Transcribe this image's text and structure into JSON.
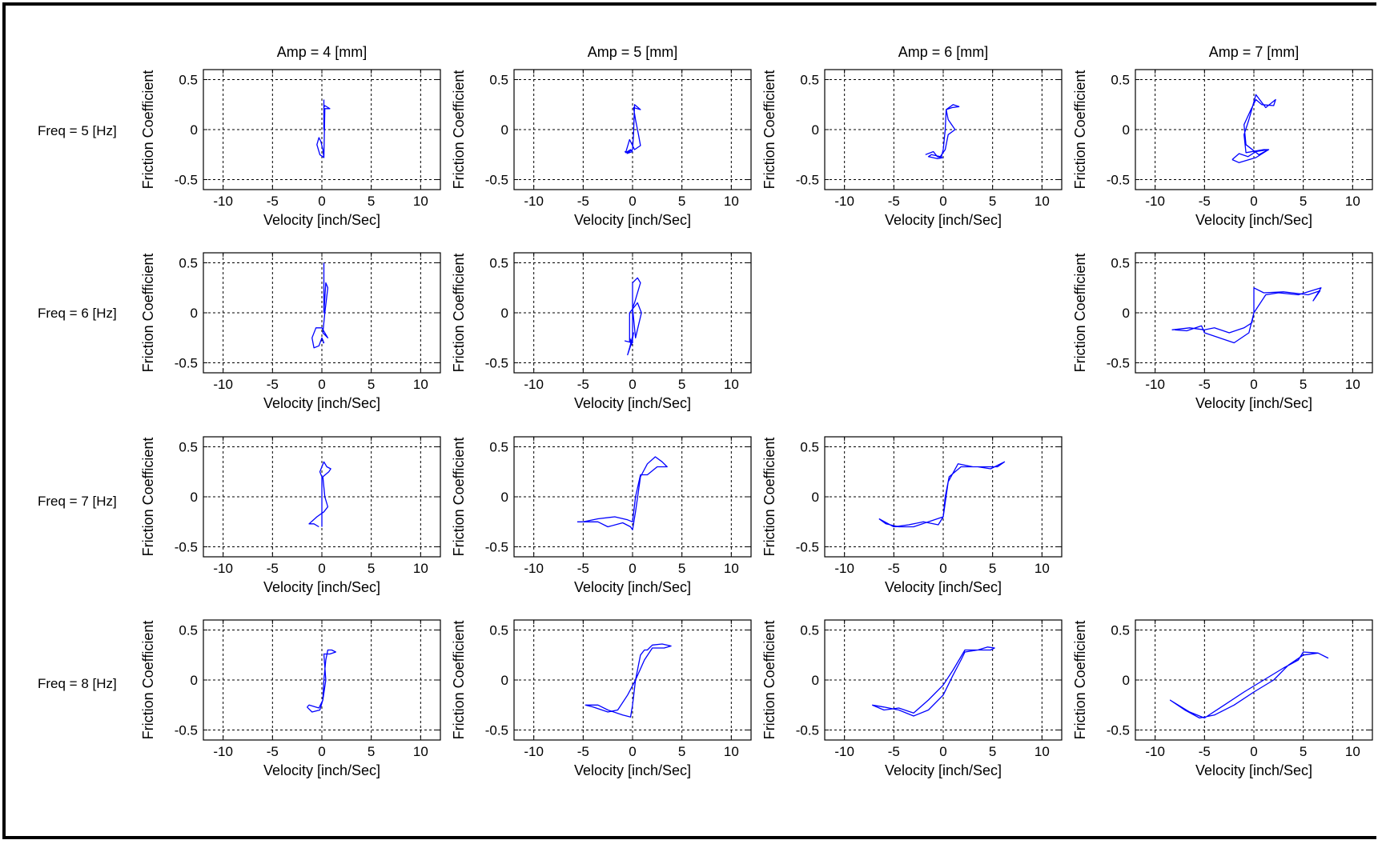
{
  "figure": {
    "column_titles": [
      "Amp = 4 [mm]",
      "Amp = 5 [mm]",
      "Amp = 6 [mm]",
      "Amp = 7 [mm]"
    ],
    "row_labels": [
      "Freq = 5 [Hz]",
      "Freq = 6 [Hz]",
      "Freq = 7 [Hz]",
      "Freq = 8 [Hz]"
    ]
  },
  "colors": {
    "trace": "#0000ff",
    "axes": "#000000",
    "background": "#ffffff"
  },
  "chart_data": [
    {
      "type": "line",
      "row": 0,
      "col": 0,
      "title": "Amp = 4 [mm]",
      "xlabel": "Velocity [inch/Sec]",
      "ylabel": "Friction Coefficient",
      "xlim": [
        -12,
        12
      ],
      "ylim": [
        -0.6,
        0.6
      ],
      "xticks": [
        -10,
        -5,
        0,
        5,
        10
      ],
      "xticklabels": [
        "-10",
        "-5",
        "0",
        "5",
        "10"
      ],
      "yticks": [
        -0.5,
        0,
        0.5
      ],
      "yticklabels": [
        "-0.5",
        "0",
        "0.5"
      ],
      "grid": true,
      "x": [
        0.2,
        0.2,
        0.2,
        0.3,
        0.8,
        0.3,
        0.2,
        -0.2,
        -0.5,
        -0.3,
        -0.1,
        0.1,
        0.2
      ],
      "y": [
        0.3,
        0.0,
        0.22,
        0.24,
        0.21,
        0.21,
        -0.28,
        -0.25,
        -0.15,
        -0.08,
        -0.12,
        -0.2,
        -0.28
      ]
    },
    {
      "type": "line",
      "row": 0,
      "col": 1,
      "title": "Amp = 5 [mm]",
      "xlabel": "Velocity [inch/Sec]",
      "ylabel": "Friction Coefficient",
      "xlim": [
        -12,
        12
      ],
      "ylim": [
        -0.6,
        0.6
      ],
      "xticks": [
        -10,
        -5,
        0,
        5,
        10
      ],
      "xticklabels": [
        "-10",
        "-5",
        "0",
        "5",
        "10"
      ],
      "yticks": [
        -0.5,
        0,
        0.5
      ],
      "yticklabels": [
        "-0.5",
        "0",
        "0.5"
      ],
      "grid": true,
      "x": [
        -0.8,
        -0.5,
        0.0,
        0.1,
        0.2,
        0.8,
        0.1,
        0.3,
        0.6,
        0.8,
        0.2,
        -0.3,
        -0.7,
        -0.2,
        0.0,
        -0.6
      ],
      "y": [
        -0.22,
        -0.23,
        -0.2,
        -0.05,
        0.25,
        0.2,
        0.22,
        0.1,
        -0.05,
        -0.16,
        -0.2,
        -0.1,
        -0.23,
        -0.2,
        -0.22,
        -0.24
      ]
    },
    {
      "type": "line",
      "row": 0,
      "col": 2,
      "title": "Amp = 6 [mm]",
      "xlabel": "Velocity [inch/Sec]",
      "ylabel": "Friction Coefficient",
      "xlim": [
        -12,
        12
      ],
      "ylim": [
        -0.6,
        0.6
      ],
      "xticks": [
        -10,
        -5,
        0,
        5,
        10
      ],
      "xticklabels": [
        "-10",
        "-5",
        "0",
        "5",
        "10"
      ],
      "yticks": [
        -0.5,
        0,
        0.5
      ],
      "yticklabels": [
        "-0.5",
        "0",
        "0.5"
      ],
      "grid": true,
      "x": [
        -1.8,
        -1.0,
        -0.6,
        -0.2,
        0.0,
        0.2,
        0.3,
        1.0,
        1.6,
        0.9,
        0.3,
        0.5,
        1.2,
        0.5,
        0.2,
        -0.3,
        -1.2,
        -1.5,
        -0.6,
        0.0
      ],
      "y": [
        -0.25,
        -0.22,
        -0.27,
        -0.28,
        -0.2,
        0.0,
        0.2,
        0.25,
        0.23,
        0.22,
        0.2,
        0.1,
        0.0,
        -0.05,
        -0.2,
        -0.27,
        -0.25,
        -0.27,
        -0.29,
        -0.28
      ]
    },
    {
      "type": "line",
      "row": 0,
      "col": 3,
      "title": "Amp = 7 [mm]",
      "xlabel": "Velocity [inch/Sec]",
      "ylabel": "Friction Coefficient",
      "xlim": [
        -12,
        12
      ],
      "ylim": [
        -0.6,
        0.6
      ],
      "xticks": [
        -10,
        -5,
        0,
        5,
        10
      ],
      "xticklabels": [
        "-10",
        "-5",
        "0",
        "5",
        "10"
      ],
      "yticks": [
        -0.5,
        0,
        0.5
      ],
      "yticklabels": [
        "-0.5",
        "0",
        "0.5"
      ],
      "grid": true,
      "x": [
        -2.2,
        -1.5,
        -0.6,
        0.2,
        1.5,
        1.0,
        -0.8,
        -1.0,
        -0.5,
        0.2,
        1.2,
        2.2,
        2.0,
        0.8,
        0.2,
        -0.3,
        -1.0,
        -0.8,
        0.5,
        1.5,
        0.2,
        -1.5,
        -2.2
      ],
      "y": [
        -0.3,
        -0.24,
        -0.27,
        -0.22,
        -0.2,
        -0.2,
        -0.23,
        -0.05,
        0.1,
        0.35,
        0.22,
        0.3,
        0.24,
        0.25,
        0.3,
        0.2,
        0.05,
        -0.15,
        -0.25,
        -0.2,
        -0.28,
        -0.33,
        -0.3
      ]
    },
    {
      "type": "line",
      "row": 1,
      "col": 0,
      "title": "",
      "xlabel": "Velocity [inch/Sec]",
      "ylabel": "Friction Coefficient",
      "xlim": [
        -12,
        12
      ],
      "ylim": [
        -0.6,
        0.6
      ],
      "xticks": [
        -10,
        -5,
        0,
        5,
        10
      ],
      "xticklabels": [
        "-10",
        "-5",
        "0",
        "5",
        "10"
      ],
      "yticks": [
        -0.5,
        0,
        0.5
      ],
      "yticklabels": [
        "-0.5",
        "0",
        "0.5"
      ],
      "grid": true,
      "x": [
        0.2,
        0.2,
        0.4,
        0.6,
        0.3,
        0.1,
        0.6,
        0.0,
        -0.6,
        -1.0,
        -0.8,
        -0.3,
        0.0,
        0.2,
        0.1
      ],
      "y": [
        0.5,
        0.0,
        0.3,
        0.25,
        0.0,
        -0.2,
        -0.25,
        -0.15,
        -0.15,
        -0.25,
        -0.35,
        -0.33,
        -0.25,
        -0.3,
        -0.3
      ]
    },
    {
      "type": "line",
      "row": 1,
      "col": 1,
      "title": "",
      "xlabel": "Velocity [inch/Sec]",
      "ylabel": "Friction Coefficient",
      "xlim": [
        -12,
        12
      ],
      "ylim": [
        -0.6,
        0.6
      ],
      "xticks": [
        -10,
        -5,
        0,
        5,
        10
      ],
      "xticklabels": [
        "-10",
        "-5",
        "0",
        "5",
        "10"
      ],
      "yticks": [
        -0.5,
        0,
        0.5
      ],
      "yticklabels": [
        "-0.5",
        "0",
        "0.5"
      ],
      "grid": true,
      "x": [
        -0.8,
        0.0,
        0.0,
        0.5,
        0.8,
        0.2,
        0.0,
        0.3,
        0.9,
        0.5,
        -0.3,
        -0.3,
        -0.1,
        0.1,
        -0.3,
        -0.5,
        -0.1,
        -0.3
      ],
      "y": [
        -0.28,
        -0.3,
        0.3,
        0.35,
        0.3,
        0.1,
        0.05,
        -0.25,
        0.0,
        0.1,
        0.0,
        -0.28,
        -0.32,
        -0.2,
        -0.35,
        -0.42,
        -0.3,
        -0.25
      ]
    },
    {
      "type": "line",
      "row": 1,
      "col": 3,
      "title": "",
      "xlabel": "Velocity [inch/Sec]",
      "ylabel": "Friction Coefficient",
      "xlim": [
        -12,
        12
      ],
      "ylim": [
        -0.6,
        0.6
      ],
      "xticks": [
        -10,
        -5,
        0,
        5,
        10
      ],
      "xticklabels": [
        "-10",
        "-5",
        "0",
        "5",
        "10"
      ],
      "yticks": [
        -0.5,
        0,
        0.5
      ],
      "yticklabels": [
        "-0.5",
        "0",
        "0.5"
      ],
      "grid": true,
      "x": [
        -8.3,
        -6.5,
        -5.0,
        -4.0,
        -2.5,
        -1.0,
        -0.2,
        0.0,
        0.0,
        1.0,
        3.0,
        5.5,
        6.7,
        6.0,
        6.5,
        6.8,
        4.5,
        2.5,
        1.2,
        0.0,
        -0.5,
        -2.0,
        -3.5,
        -5.0,
        -5.3,
        -6.8,
        -8.0
      ],
      "y": [
        -0.17,
        -0.15,
        -0.17,
        -0.15,
        -0.2,
        -0.15,
        -0.1,
        0.0,
        0.25,
        0.2,
        0.21,
        0.18,
        0.22,
        0.12,
        0.2,
        0.25,
        0.18,
        0.2,
        0.18,
        0.0,
        -0.2,
        -0.3,
        -0.25,
        -0.2,
        -0.13,
        -0.18,
        -0.17
      ]
    },
    {
      "type": "line",
      "row": 2,
      "col": 0,
      "title": "",
      "xlabel": "Velocity [inch/Sec]",
      "ylabel": "Friction Coefficient",
      "xlim": [
        -12,
        12
      ],
      "ylim": [
        -0.6,
        0.6
      ],
      "xticks": [
        -10,
        -5,
        0,
        5,
        10
      ],
      "xticklabels": [
        "-10",
        "-5",
        "0",
        "5",
        "10"
      ],
      "yticks": [
        -0.5,
        0,
        0.5
      ],
      "yticklabels": [
        "-0.5",
        "0",
        "0.5"
      ],
      "grid": true,
      "x": [
        0.0,
        0.0,
        -0.2,
        0.2,
        0.5,
        0.9,
        0.7,
        0.1,
        0.3,
        0.6,
        0.2,
        -0.5,
        -1.3,
        -0.8,
        -0.3
      ],
      "y": [
        -0.3,
        0.2,
        0.25,
        0.35,
        0.3,
        0.28,
        0.25,
        0.2,
        0.0,
        -0.1,
        -0.15,
        -0.2,
        -0.27,
        -0.27,
        -0.3
      ]
    },
    {
      "type": "line",
      "row": 2,
      "col": 1,
      "title": "",
      "xlabel": "Velocity [inch/Sec]",
      "ylabel": "Friction Coefficient",
      "xlim": [
        -12,
        12
      ],
      "ylim": [
        -0.6,
        0.6
      ],
      "xticks": [
        -10,
        -5,
        0,
        5,
        10
      ],
      "xticklabels": [
        "-10",
        "-5",
        "0",
        "5",
        "10"
      ],
      "yticks": [
        -0.5,
        0,
        0.5
      ],
      "yticklabels": [
        "-0.5",
        "0",
        "0.5"
      ],
      "grid": true,
      "x": [
        -5.6,
        -3.5,
        -2.5,
        -1.0,
        -0.2,
        0.0,
        0.3,
        0.8,
        1.5,
        2.3,
        3.0,
        3.5,
        2.5,
        1.5,
        0.8,
        0.3,
        0.0,
        -0.5,
        -1.8,
        -3.5,
        -5.0,
        -5.6
      ],
      "y": [
        -0.25,
        -0.25,
        -0.3,
        -0.26,
        -0.3,
        -0.33,
        -0.15,
        0.2,
        0.33,
        0.4,
        0.35,
        0.3,
        0.3,
        0.22,
        0.22,
        0.0,
        -0.25,
        -0.23,
        -0.2,
        -0.22,
        -0.25,
        -0.25
      ]
    },
    {
      "type": "line",
      "row": 2,
      "col": 2,
      "title": "",
      "xlabel": "Velocity [inch/Sec]",
      "ylabel": "Friction Coefficient",
      "xlim": [
        -12,
        12
      ],
      "ylim": [
        -0.6,
        0.6
      ],
      "xticks": [
        -10,
        -5,
        0,
        5,
        10
      ],
      "xticklabels": [
        "-10",
        "-5",
        "0",
        "5",
        "10"
      ],
      "yticks": [
        -0.5,
        0,
        0.5
      ],
      "yticklabels": [
        "-0.5",
        "0",
        "0.5"
      ],
      "grid": true,
      "x": [
        -6.5,
        -5.0,
        -3.5,
        -2.0,
        -0.5,
        0.0,
        0.2,
        0.6,
        1.8,
        3.5,
        4.8,
        6.2,
        5.5,
        3.0,
        1.5,
        0.5,
        0.0,
        -1.5,
        -3.0,
        -4.5,
        -5.8,
        -6.5
      ],
      "y": [
        -0.22,
        -0.3,
        -0.28,
        -0.25,
        -0.28,
        -0.2,
        0.0,
        0.2,
        0.3,
        0.3,
        0.28,
        0.35,
        0.3,
        0.3,
        0.33,
        0.15,
        -0.2,
        -0.25,
        -0.3,
        -0.3,
        -0.27,
        -0.22
      ]
    },
    {
      "type": "line",
      "row": 3,
      "col": 0,
      "title": "",
      "xlabel": "Velocity [inch/Sec]",
      "ylabel": "Friction Coefficient",
      "xlim": [
        -12,
        12
      ],
      "ylim": [
        -0.6,
        0.6
      ],
      "xticks": [
        -10,
        -5,
        0,
        5,
        10
      ],
      "xticklabels": [
        "-10",
        "-5",
        "0",
        "5",
        "10"
      ],
      "yticks": [
        -0.5,
        0,
        0.5
      ],
      "yticklabels": [
        "-0.5",
        "0",
        "0.5"
      ],
      "grid": true,
      "x": [
        -1.5,
        -1.0,
        -0.2,
        0.1,
        0.2,
        0.4,
        0.6,
        1.0,
        1.4,
        0.8,
        0.2,
        0.4,
        0.1,
        -0.3,
        -1.3,
        -1.5
      ],
      "y": [
        -0.27,
        -0.32,
        -0.3,
        -0.2,
        0.0,
        0.2,
        0.3,
        0.3,
        0.28,
        0.26,
        0.26,
        0.0,
        -0.2,
        -0.28,
        -0.25,
        -0.27
      ]
    },
    {
      "type": "line",
      "row": 3,
      "col": 1,
      "title": "",
      "xlabel": "Velocity [inch/Sec]",
      "ylabel": "Friction Coefficient",
      "xlim": [
        -12,
        12
      ],
      "ylim": [
        -0.6,
        0.6
      ],
      "xticks": [
        -10,
        -5,
        0,
        5,
        10
      ],
      "xticklabels": [
        "-10",
        "-5",
        "0",
        "5",
        "10"
      ],
      "yticks": [
        -0.5,
        0,
        0.5
      ],
      "yticklabels": [
        "-0.5",
        "0",
        "0.5"
      ],
      "grid": true,
      "x": [
        -4.8,
        -3.5,
        -2.5,
        -1.0,
        -0.2,
        0.0,
        0.3,
        0.8,
        1.2,
        1.5,
        2.0,
        3.0,
        3.9,
        3.2,
        2.0,
        1.2,
        0.3,
        -0.5,
        -1.5,
        -2.5,
        -4.0,
        -4.8
      ],
      "y": [
        -0.25,
        -0.25,
        -0.3,
        -0.35,
        -0.37,
        -0.25,
        0.0,
        0.25,
        0.3,
        0.3,
        0.35,
        0.36,
        0.34,
        0.32,
        0.32,
        0.2,
        0.0,
        -0.15,
        -0.3,
        -0.32,
        -0.27,
        -0.25
      ]
    },
    {
      "type": "line",
      "row": 3,
      "col": 2,
      "title": "",
      "xlabel": "Velocity [inch/Sec]",
      "ylabel": "Friction Coefficient",
      "xlim": [
        -12,
        12
      ],
      "ylim": [
        -0.6,
        0.6
      ],
      "xticks": [
        -10,
        -5,
        0,
        5,
        10
      ],
      "xticklabels": [
        "-10",
        "-5",
        "0",
        "5",
        "10"
      ],
      "yticks": [
        -0.5,
        0,
        0.5
      ],
      "yticklabels": [
        "-0.5",
        "0",
        "0.5"
      ],
      "grid": true,
      "x": [
        -7.2,
        -6.0,
        -4.5,
        -3.0,
        -1.5,
        0.0,
        1.0,
        1.8,
        2.2,
        3.5,
        4.5,
        5.2,
        4.8,
        3.5,
        2.2,
        1.0,
        0.0,
        -1.5,
        -3.0,
        -4.5,
        -6.0,
        -7.2
      ],
      "y": [
        -0.25,
        -0.27,
        -0.3,
        -0.36,
        -0.3,
        -0.15,
        0.05,
        0.2,
        0.28,
        0.3,
        0.33,
        0.32,
        0.3,
        0.3,
        0.3,
        0.1,
        -0.05,
        -0.2,
        -0.33,
        -0.28,
        -0.3,
        -0.25
      ]
    },
    {
      "type": "line",
      "row": 3,
      "col": 3,
      "title": "",
      "xlabel": "Velocity [inch/Sec]",
      "ylabel": "Friction Coefficient",
      "xlim": [
        -12,
        12
      ],
      "ylim": [
        -0.6,
        0.6
      ],
      "xticks": [
        -10,
        -5,
        0,
        5,
        10
      ],
      "xticklabels": [
        "-10",
        "-5",
        "0",
        "5",
        "10"
      ],
      "yticks": [
        -0.5,
        0,
        0.5
      ],
      "yticklabels": [
        "-0.5",
        "0",
        "0.5"
      ],
      "grid": true,
      "x": [
        -8.5,
        -7.0,
        -5.5,
        -4.0,
        -2.0,
        0.0,
        2.0,
        3.5,
        5.0,
        6.5,
        7.5,
        6.5,
        5.0,
        4.5,
        3.0,
        1.0,
        -1.0,
        -3.0,
        -5.0,
        -6.5,
        -8.5
      ],
      "y": [
        -0.2,
        -0.3,
        -0.38,
        -0.35,
        -0.25,
        -0.12,
        0.0,
        0.15,
        0.25,
        0.27,
        0.22,
        0.27,
        0.28,
        0.2,
        0.12,
        0.0,
        -0.12,
        -0.25,
        -0.38,
        -0.32,
        -0.2
      ]
    }
  ]
}
